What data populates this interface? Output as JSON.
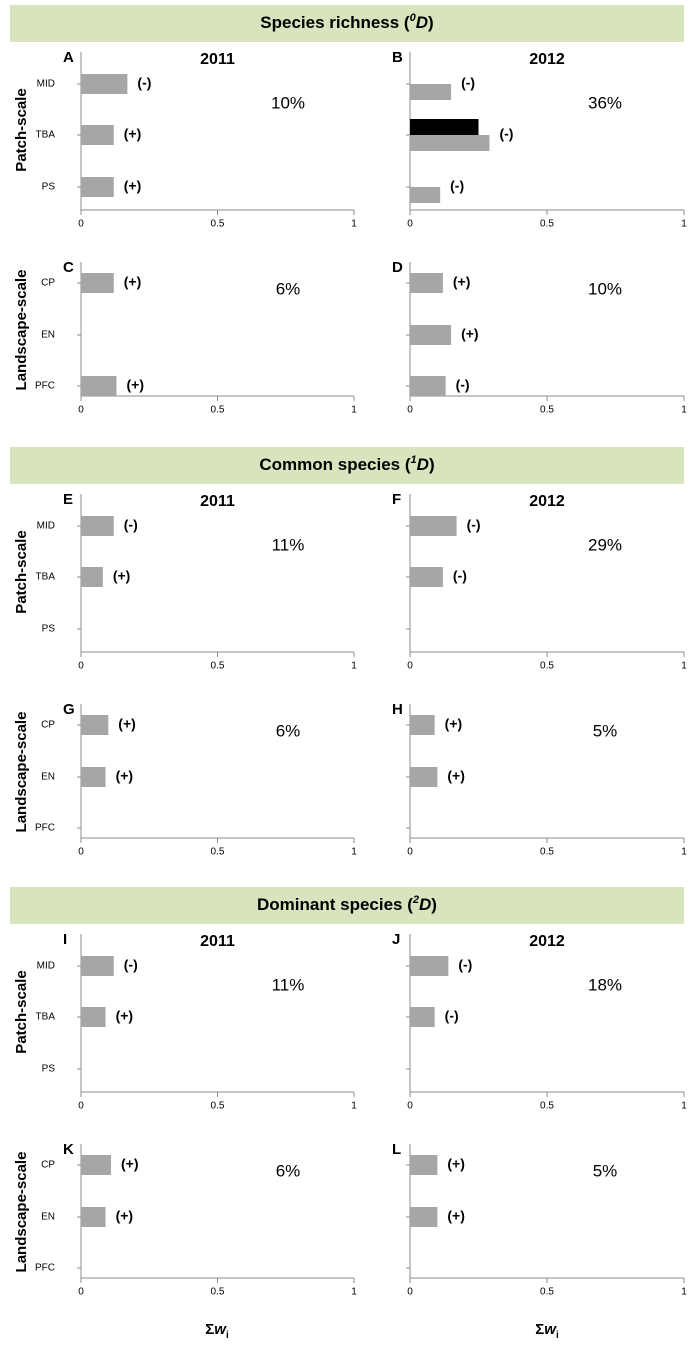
{
  "sections": [
    {
      "title": [
        "Species richness (",
        "0",
        "D",
        ")"
      ]
    },
    {
      "title": [
        "Common species (",
        "1",
        "D",
        ")"
      ]
    },
    {
      "title": [
        "Dominant species (",
        "2",
        "D",
        ")"
      ]
    }
  ],
  "row_labels": [
    "Patch-scale",
    "Landscape-scale"
  ],
  "xlabel": [
    "Σ",
    "w",
    "i"
  ],
  "chart_data": [
    {
      "type": "bar",
      "letter": "A",
      "title": "2011",
      "categories": [
        "MID",
        "TBA",
        "PS"
      ],
      "series": [
        {
          "color": "#a6a6a6",
          "values": [
            0.17,
            0.12,
            0.12
          ]
        }
      ],
      "signs": [
        "(-)",
        "(+)",
        "(+)"
      ],
      "note": "10%",
      "xlim": [
        0,
        1
      ],
      "xticks": [
        0,
        0.5,
        1
      ]
    },
    {
      "type": "bar",
      "letter": "B",
      "title": "2012",
      "categories": [
        null,
        null,
        null
      ],
      "series": [
        {
          "color": "#000000",
          "values": [
            null,
            0.25,
            null
          ]
        },
        {
          "color": "#a6a6a6",
          "values": [
            0.15,
            0.29,
            0.11
          ]
        }
      ],
      "signs": [
        "(-)",
        "(-)",
        "(-)"
      ],
      "note": "36%",
      "xlim": [
        0,
        1
      ],
      "xticks": [
        0,
        0.5,
        1
      ]
    },
    {
      "type": "bar",
      "letter": "C",
      "categories": [
        "CP",
        "EN",
        "PFC"
      ],
      "series": [
        {
          "color": "#a6a6a6",
          "values": [
            0.12,
            null,
            0.13
          ]
        }
      ],
      "signs": [
        "(+)",
        null,
        "(+)"
      ],
      "note": "6%",
      "xlim": [
        0,
        1
      ],
      "xticks": [
        0,
        0.5,
        1
      ]
    },
    {
      "type": "bar",
      "letter": "D",
      "categories": [
        null,
        null,
        null
      ],
      "series": [
        {
          "color": "#a6a6a6",
          "values": [
            0.12,
            0.15,
            0.13
          ]
        }
      ],
      "signs": [
        "(+)",
        "(+)",
        "(-)"
      ],
      "note": "10%",
      "xlim": [
        0,
        1
      ],
      "xticks": [
        0,
        0.5,
        1
      ]
    },
    {
      "type": "bar",
      "letter": "E",
      "title": "2011",
      "categories": [
        "MID",
        "TBA",
        "PS"
      ],
      "series": [
        {
          "color": "#a6a6a6",
          "values": [
            0.12,
            0.08,
            null
          ]
        }
      ],
      "signs": [
        "(-)",
        "(+)",
        null
      ],
      "note": "11%",
      "xlim": [
        0,
        1
      ],
      "xticks": [
        0,
        0.5,
        1
      ]
    },
    {
      "type": "bar",
      "letter": "F",
      "title": "2012",
      "categories": [
        null,
        null,
        null
      ],
      "series": [
        {
          "color": "#a6a6a6",
          "values": [
            0.17,
            0.12,
            null
          ]
        }
      ],
      "signs": [
        "(-)",
        "(-)",
        null
      ],
      "note": "29%",
      "xlim": [
        0,
        1
      ],
      "xticks": [
        0,
        0.5,
        1
      ]
    },
    {
      "type": "bar",
      "letter": "G",
      "categories": [
        "CP",
        "EN",
        "PFC"
      ],
      "series": [
        {
          "color": "#a6a6a6",
          "values": [
            0.1,
            0.09,
            null
          ]
        }
      ],
      "signs": [
        "(+)",
        "(+)",
        null
      ],
      "note": "6%",
      "xlim": [
        0,
        1
      ],
      "xticks": [
        0,
        0.5,
        1
      ]
    },
    {
      "type": "bar",
      "letter": "H",
      "categories": [
        null,
        null,
        null
      ],
      "series": [
        {
          "color": "#a6a6a6",
          "values": [
            0.09,
            0.1,
            null
          ]
        }
      ],
      "signs": [
        "(+)",
        "(+)",
        null
      ],
      "note": "5%",
      "xlim": [
        0,
        1
      ],
      "xticks": [
        0,
        0.5,
        1
      ]
    },
    {
      "type": "bar",
      "letter": "I",
      "title": "2011",
      "categories": [
        "MID",
        "TBA",
        "PS"
      ],
      "series": [
        {
          "color": "#a6a6a6",
          "values": [
            0.12,
            0.09,
            null
          ]
        }
      ],
      "signs": [
        "(-)",
        "(+)",
        null
      ],
      "note": "11%",
      "xlim": [
        0,
        1
      ],
      "xticks": [
        0,
        0.5,
        1
      ]
    },
    {
      "type": "bar",
      "letter": "J",
      "title": "2012",
      "categories": [
        null,
        null,
        null
      ],
      "series": [
        {
          "color": "#a6a6a6",
          "values": [
            0.14,
            0.09,
            null
          ]
        }
      ],
      "signs": [
        "(-)",
        "(-)",
        null
      ],
      "note": "18%",
      "xlim": [
        0,
        1
      ],
      "xticks": [
        0,
        0.5,
        1
      ]
    },
    {
      "type": "bar",
      "letter": "K",
      "categories": [
        "CP",
        "EN",
        "PFC"
      ],
      "series": [
        {
          "color": "#a6a6a6",
          "values": [
            0.11,
            0.09,
            null
          ]
        }
      ],
      "signs": [
        "(+)",
        "(+)",
        null
      ],
      "note": "6%",
      "xlim": [
        0,
        1
      ],
      "xticks": [
        0,
        0.5,
        1
      ]
    },
    {
      "type": "bar",
      "letter": "L",
      "categories": [
        null,
        null,
        null
      ],
      "series": [
        {
          "color": "#a6a6a6",
          "values": [
            0.1,
            0.1,
            null
          ]
        }
      ],
      "signs": [
        "(+)",
        "(+)",
        null
      ],
      "note": "5%",
      "xlim": [
        0,
        1
      ],
      "xticks": [
        0,
        0.5,
        1
      ]
    }
  ]
}
